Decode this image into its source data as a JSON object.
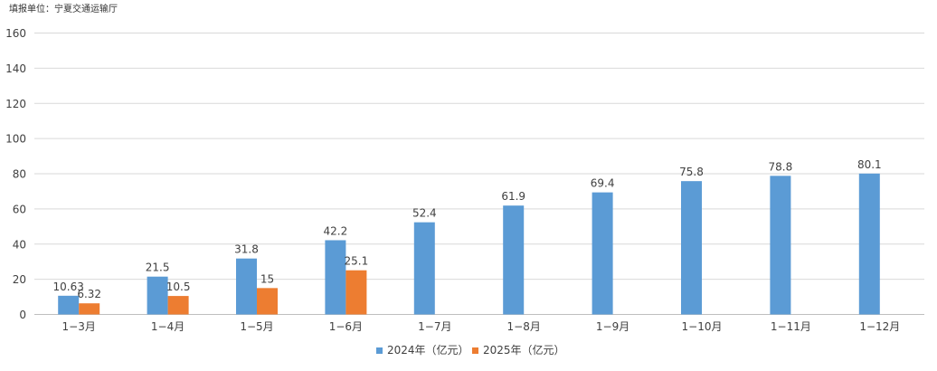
{
  "header": {
    "unit_note": "填报单位：宁夏交通运输厅"
  },
  "chart_data": {
    "type": "bar",
    "categories": [
      "1−3月",
      "1−4月",
      "1−5月",
      "1−6月",
      "1−7月",
      "1−8月",
      "1−9月",
      "1−10月",
      "1−11月",
      "1−12月"
    ],
    "series": [
      {
        "name": "2024年（亿元）",
        "color": "#5B9BD5",
        "values": [
          10.63,
          21.5,
          31.8,
          42.2,
          52.4,
          61.9,
          69.4,
          75.8,
          78.8,
          80.1
        ],
        "labels": [
          "10.63",
          "21.5",
          "31.8",
          "42.2",
          "52.4",
          "61.9",
          "69.4",
          "75.8",
          "78.8",
          "80.1"
        ]
      },
      {
        "name": "2025年（亿元）",
        "color": "#ED7D31",
        "values": [
          6.32,
          10.5,
          15,
          25.1,
          null,
          null,
          null,
          null,
          null,
          null
        ],
        "labels": [
          "6.32",
          "10.5",
          "15",
          "25.1",
          null,
          null,
          null,
          null,
          null,
          null
        ]
      }
    ],
    "ylim": [
      0,
      160
    ],
    "yticks": [
      "0",
      "20",
      "40",
      "60",
      "80",
      "100",
      "120",
      "140",
      "160"
    ],
    "grid": true,
    "legend_position": "bottom-center",
    "title": "",
    "xlabel": "",
    "ylabel": ""
  }
}
